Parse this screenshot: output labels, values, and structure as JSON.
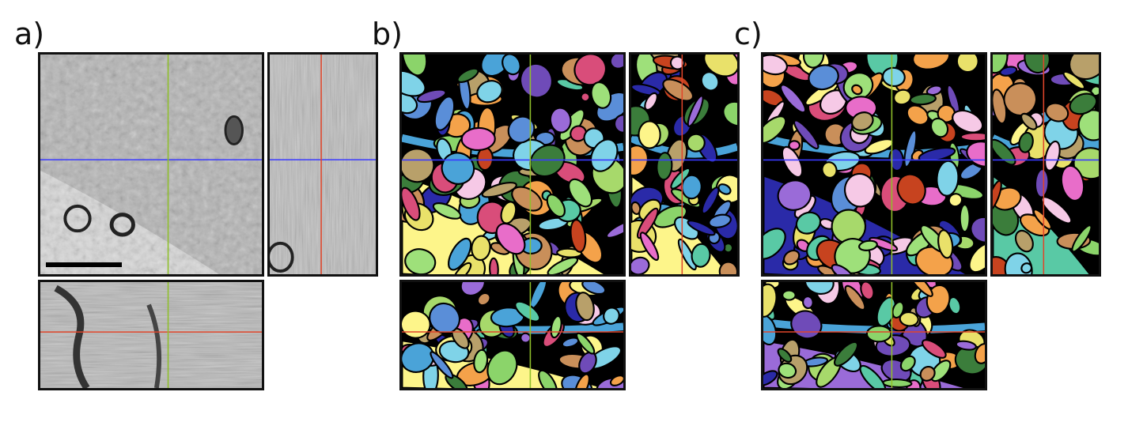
{
  "labels": {
    "a": "a)",
    "b": "b)",
    "c": "c)"
  },
  "panels": [
    {
      "id": "a",
      "content": "electron-microscopy-grayscale"
    },
    {
      "id": "b",
      "content": "segmentation-colored"
    },
    {
      "id": "c",
      "content": "segmentation-colored"
    }
  ],
  "crosshair_colors": {
    "blue": "#3a3aff",
    "green": "#8fbf2a",
    "red": "#e0452a"
  },
  "palette": [
    "#fdf58a",
    "#2a2aa8",
    "#8bd46a",
    "#e86dc9",
    "#4aa3d8",
    "#c7431f",
    "#9a6bd8",
    "#f4a24a",
    "#59c9a5",
    "#b8a06a",
    "#7fd3e8",
    "#f6c9e6",
    "#3b7d3b",
    "#d94d7a",
    "#a7d96b",
    "#6f4bb8",
    "#e9e16a",
    "#5a8ed8",
    "#c98f5a",
    "#9ee07a"
  ]
}
